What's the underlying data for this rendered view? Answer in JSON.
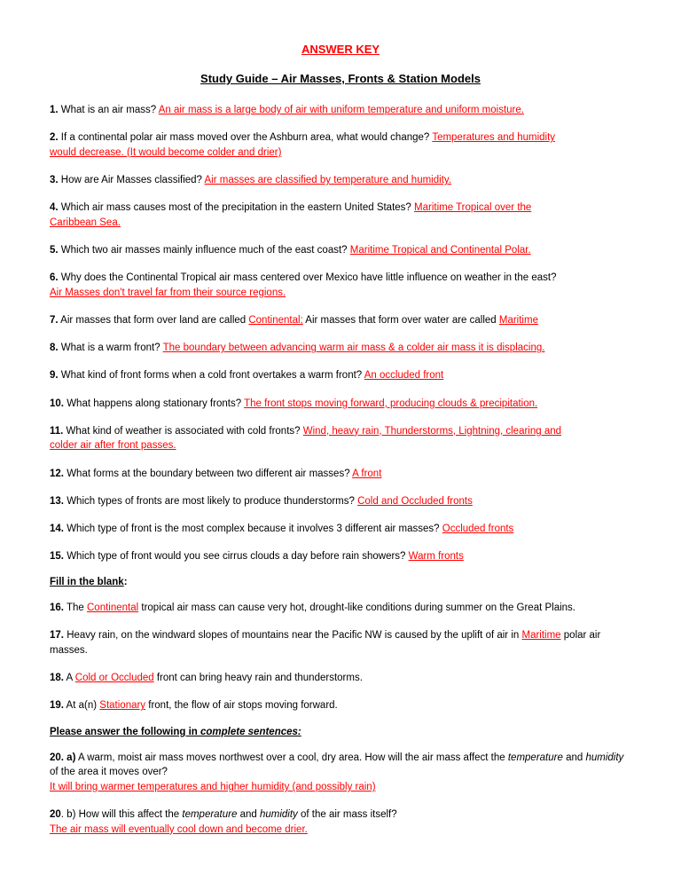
{
  "title": "ANSWER KEY",
  "subtitle": "Study Guide – Air Masses, Fronts & Station Models",
  "q1_num": "1.",
  "q1_text": "  What is an air mass? ",
  "q1_ans": "An air mass is a large body of air with uniform temperature and uniform moisture.",
  "q2_num": "2.",
  "q2_text": "  If a continental polar air mass moved over the Ashburn area, what would change? ",
  "q2_ans1": "Temperatures and humidity",
  "q2_ans2": "would decrease.  (It would become colder and drier)",
  "q3_num": "3.",
  "q3_text": "  How are Air Masses classified? ",
  "q3_ans": "Air masses are classified by temperature and humidity.",
  "q4_num": "4.",
  "q4_text": "  Which air mass causes most of the precipitation in the eastern United States? ",
  "q4_ans1": "Maritime Tropical over the",
  "q4_ans2": "Caribbean Sea.",
  "q5_num": "5.",
  "q5_text": "  Which two air masses mainly influence much of the east coast? ",
  "q5_ans": "Maritime Tropical and Continental Polar.",
  "q6_num": "6.",
  "q6_text": "  Why does the Continental Tropical air mass centered over Mexico have little influence on weather in the east?",
  "q6_ans": "Air Masses don't travel far from their source regions.",
  "q7_num": "7.",
  "q7_text1": "  Air masses that form over land are called ",
  "q7_ans1": "Continental;",
  "q7_text2": " Air masses that form over water are called ",
  "q7_ans2": "Maritime",
  "q8_num": "8.",
  "q8_text": "  What is a warm front? ",
  "q8_ans": "The boundary between advancing warm air mass & a colder air mass it is displacing.",
  "q9_num": "9.",
  "q9_text": "  What kind of front forms when a cold front overtakes a warm front? ",
  "q9_ans": "An occluded front",
  "q10_num": "10.",
  "q10_text": "  What happens along stationary fronts? ",
  "q10_ans": "The front stops moving forward, producing clouds & precipitation.",
  "q11_num": "11.",
  "q11_text": "  What kind of weather is associated with cold fronts? ",
  "q11_ans1": "Wind, heavy rain, Thunderstorms, Lightning, clearing and",
  "q11_ans2": "colder air after front passes.",
  "q12_num": "12.",
  "q12_text": "  What forms at the boundary between two different air masses? ",
  "q12_ans": "A front",
  "q13_num": "13.",
  "q13_text": "  Which types of fronts are most likely to produce thunderstorms? ",
  "q13_ans": "Cold and Occluded fronts",
  "q14_num": "14.",
  "q14_text": "  Which type of front is the most complex because it involves 3 different air masses? ",
  "q14_ans": "Occluded fronts",
  "q15_num": "15.",
  "q15_text": " Which type of front would you see cirrus clouds a day before rain showers? ",
  "q15_ans": "Warm fronts",
  "section1_text": "Fill in the blank",
  "section1_colon": ":",
  "q16_num": "16.",
  "q16_text1": "  The ",
  "q16_ans": "Continental",
  "q16_text2": " tropical air mass can cause very hot, drought-like conditions during summer on the Great Plains.",
  "q17_num": "17.",
  "q17_text1": "  Heavy rain, on the windward slopes of mountains near the Pacific NW is caused by the uplift of air in ",
  "q17_ans": "Maritime",
  "q17_text2": " polar air masses.",
  "q18_num": "18.",
  "q18_text1": "  A ",
  "q18_ans": "Cold or Occluded",
  "q18_text2": " front can bring heavy rain and thunderstorms.",
  "q19_num": "19.",
  "q19_text1": "  At a(n) ",
  "q19_ans": "Stationary",
  "q19_text2": " front, the flow of air stops moving forward.",
  "section2_text1": "Please answer the following in ",
  "section2_text2": "complete sentences:",
  "q20a_num": "20. a)",
  "q20a_text1": " A warm, moist air mass moves northwest over a cool, dry area.  How will the air mass affect the ",
  "q20a_i1": "temperature",
  "q20a_text2": " and ",
  "q20a_i2": "humidity",
  "q20a_text3": " of the area it moves over?",
  "q20a_ans": "It will bring warmer temperatures and higher humidity (and possibly rain)",
  "q20b_num": "20",
  "q20b_num2": ". b)",
  "q20b_text1": " How will this affect the ",
  "q20b_i1": "temperature",
  "q20b_text2": " and ",
  "q20b_i2": "humidity",
  "q20b_text3": " of the air mass itself?",
  "q20b_ans": "The air mass will eventually cool down and become drier."
}
